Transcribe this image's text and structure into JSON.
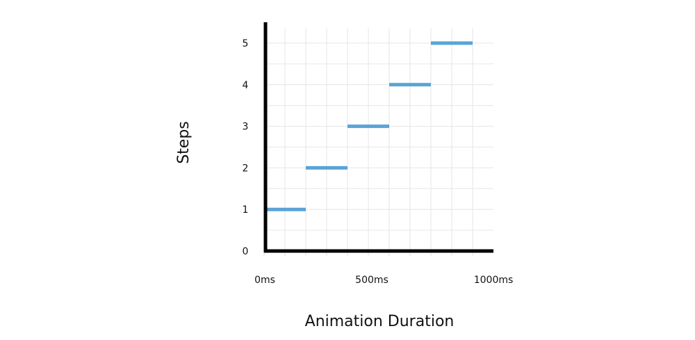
{
  "chart_data": {
    "type": "line",
    "title": "",
    "xlabel": "Animation Duration",
    "ylabel": "Steps",
    "x_unit": "ms",
    "xlim": [
      0,
      1000
    ],
    "ylim": [
      0,
      5
    ],
    "x_tick_labels": [
      "0ms",
      "500ms",
      "1000ms"
    ],
    "y_tick_labels": [
      "0",
      "1",
      "2",
      "3",
      "4",
      "5"
    ],
    "grid": true,
    "legend": "none",
    "series": [
      {
        "color": "#5aa3d6",
        "segments": [
          {
            "x_start": 0,
            "x_end": 200,
            "y": 1
          },
          {
            "x_start": 200,
            "x_end": 400,
            "y": 2
          },
          {
            "x_start": 400,
            "x_end": 600,
            "y": 3
          },
          {
            "x_start": 600,
            "x_end": 800,
            "y": 4
          },
          {
            "x_start": 800,
            "x_end": 1000,
            "y": 5
          }
        ]
      }
    ]
  }
}
